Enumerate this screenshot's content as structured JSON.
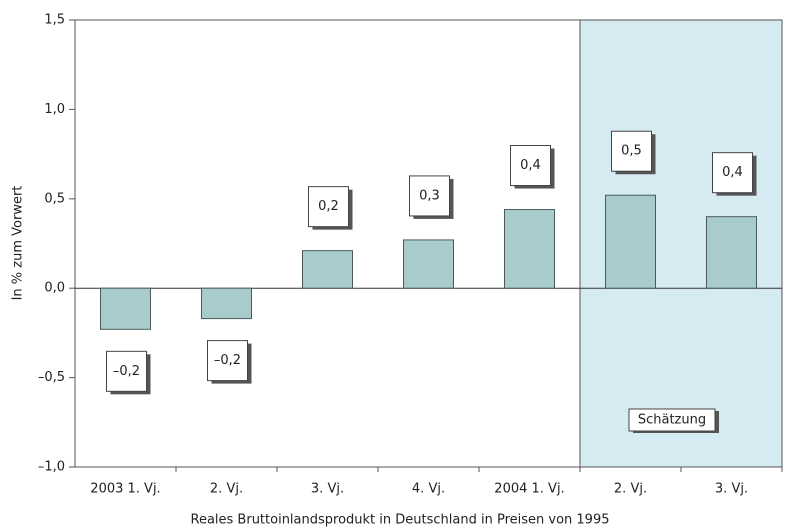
{
  "chart_data": {
    "type": "bar",
    "categories": [
      "2003 1. Vj.",
      "2. Vj.",
      "3. Vj.",
      "4. Vj.",
      "2004 1. Vj.",
      "2. Vj.",
      "3. Vj."
    ],
    "values": [
      -0.23,
      -0.17,
      0.21,
      0.27,
      0.44,
      0.52,
      0.4
    ],
    "value_labels": [
      "–0,2",
      "–0,2",
      "0,2",
      "0,3",
      "0,4",
      "0,5",
      "0,4"
    ],
    "color": "#a8cccb",
    "ylim": [
      -1.0,
      1.5
    ],
    "yticks": [
      {
        "value": -1.0,
        "label": "–1,0"
      },
      {
        "value": -0.5,
        "label": "–0,5"
      },
      {
        "value": 0,
        "label": "0,0"
      },
      {
        "value": 0.5,
        "label": "0,5"
      },
      {
        "value": 1.0,
        "label": "1,0"
      },
      {
        "value": 1.5,
        "label": "1,5"
      }
    ],
    "ylabel": "In % zum Vorwert",
    "xlabel": "Reales Bruttoinlandsprodukt in Deutschland in Preisen von 1995",
    "annotation": "Schätzung",
    "shade_start_index": 5,
    "shade_color": "#d6eaf2"
  }
}
